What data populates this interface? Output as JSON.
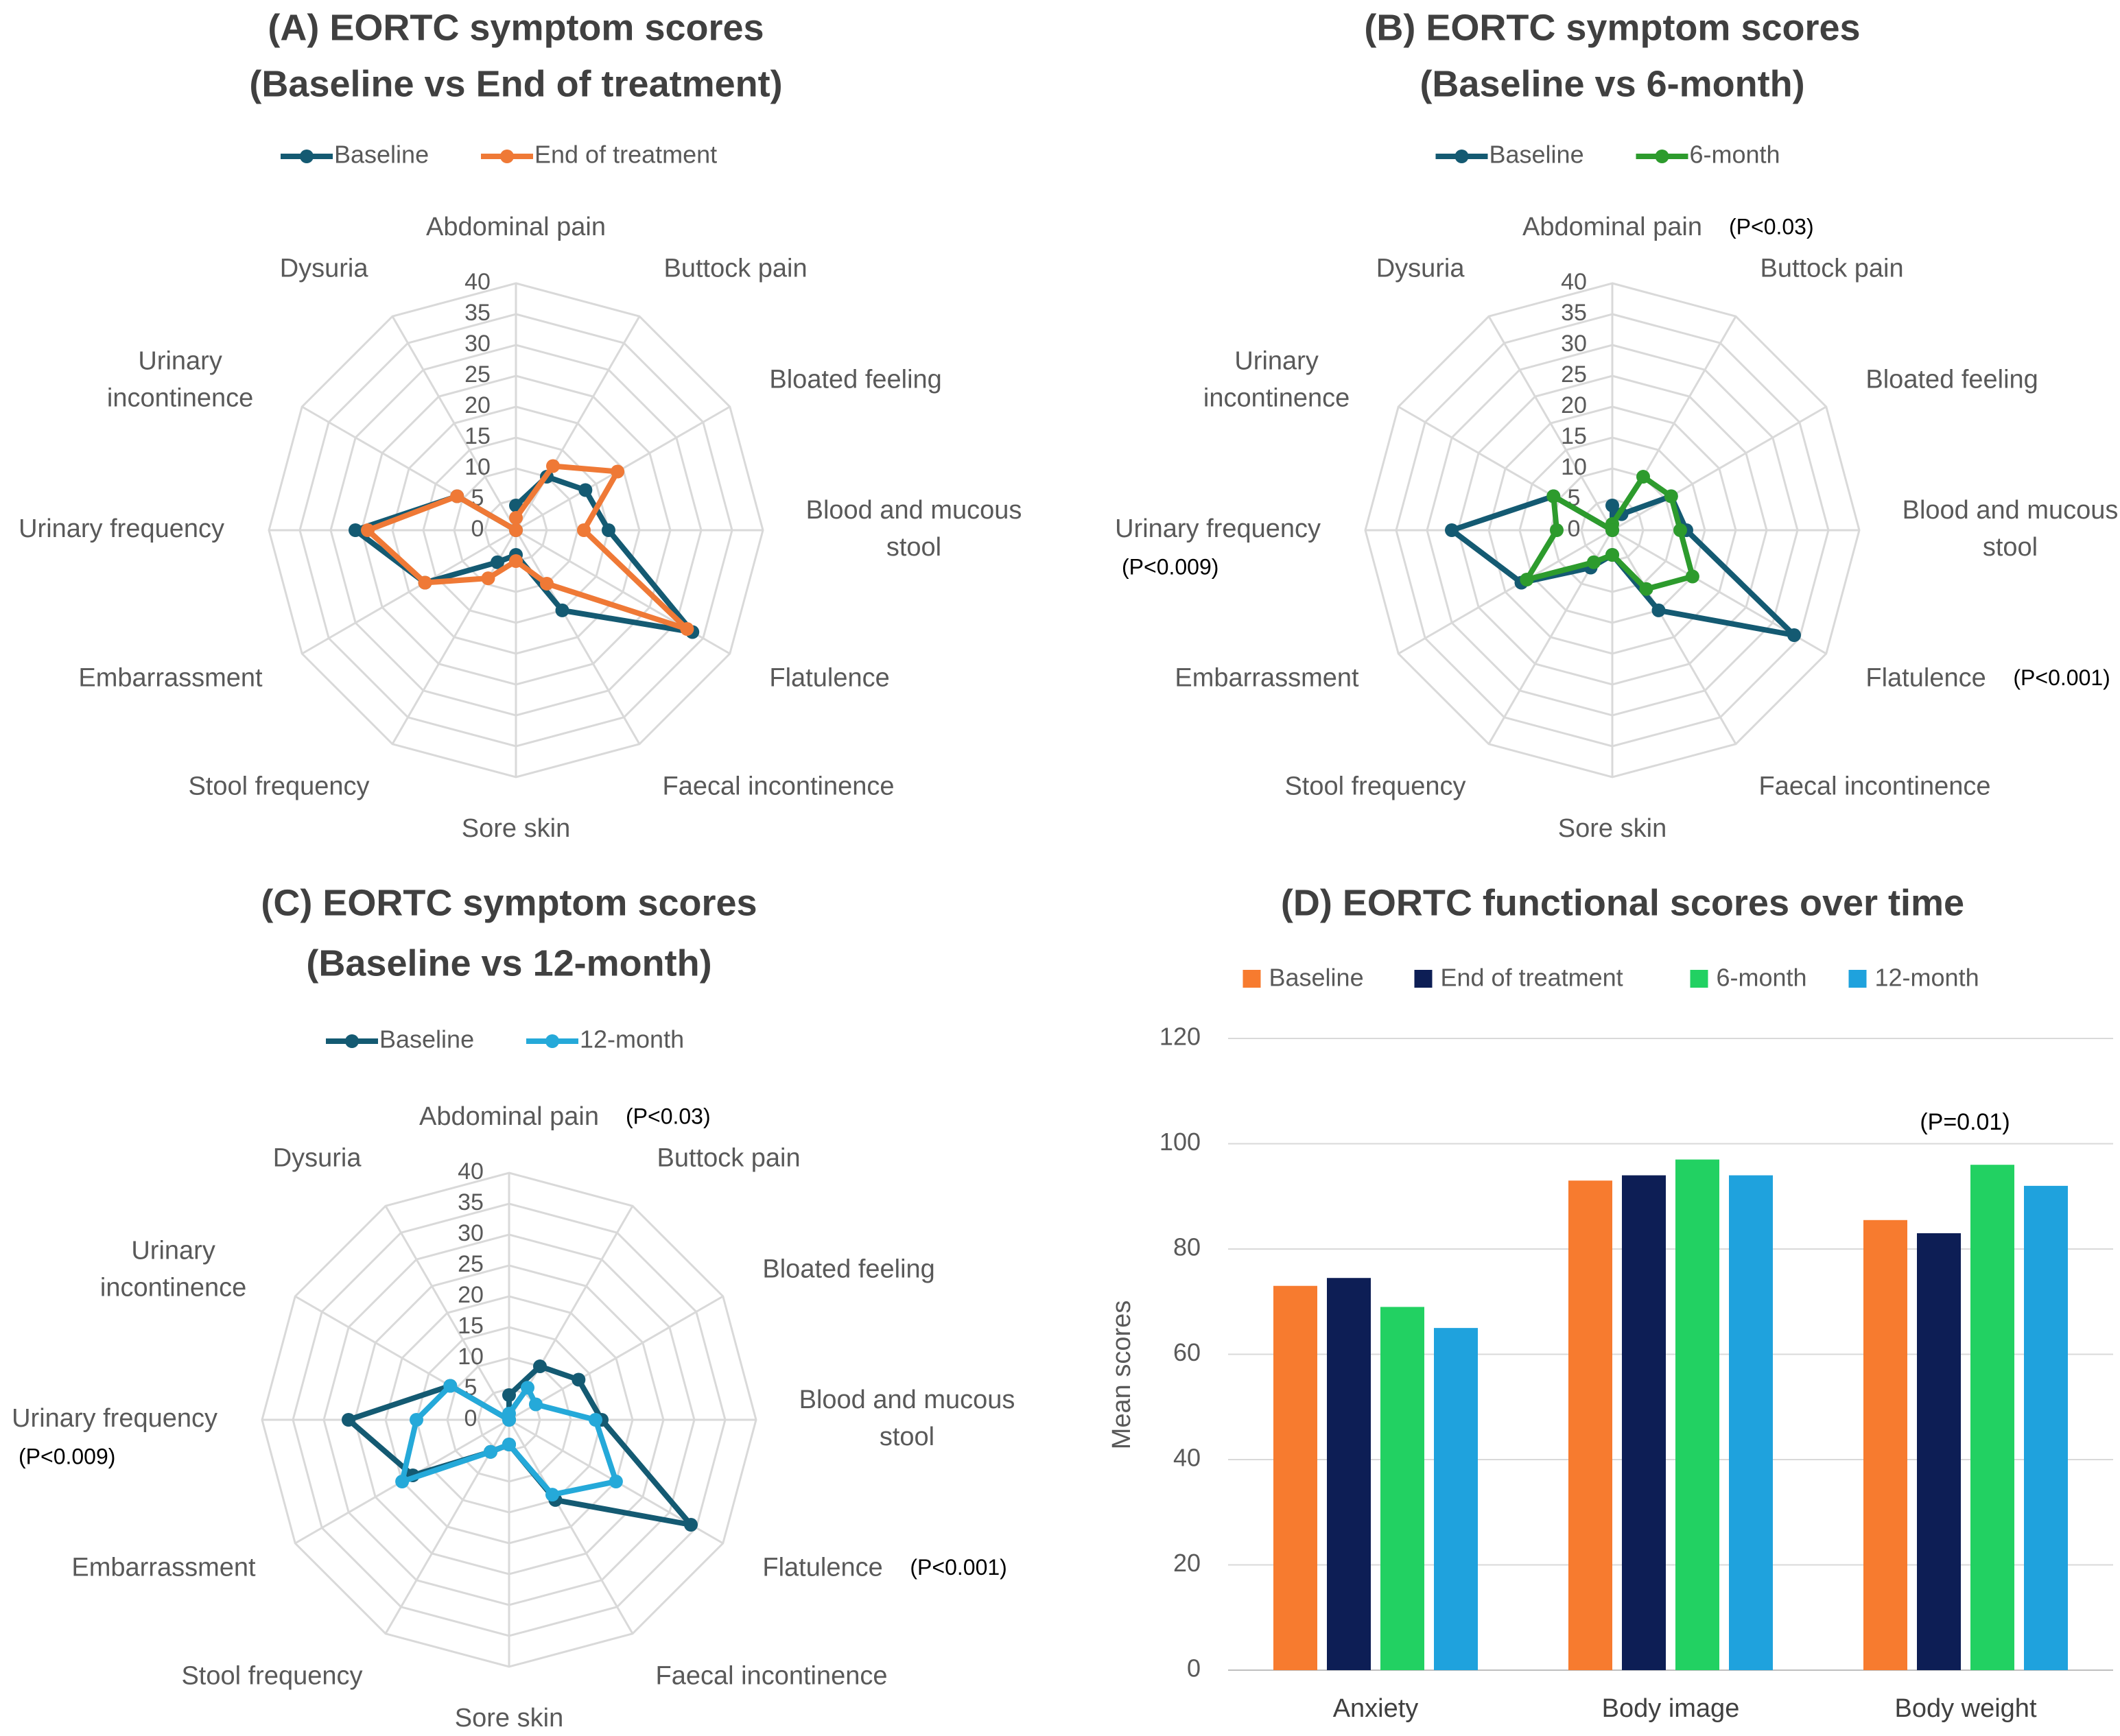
{
  "chart_data": [
    {
      "type": "radar",
      "title": "(A) EORTC symptom scores",
      "subtitle": "(Baseline vs End of treatment)",
      "rlim": [
        0,
        40
      ],
      "ticks": [
        "0",
        "5",
        "10",
        "15",
        "20",
        "25",
        "30",
        "35",
        "40"
      ],
      "tick_values": [
        0,
        5,
        10,
        15,
        20,
        25,
        30,
        35,
        40
      ],
      "legend_position": "top",
      "categories": [
        "Abdominal pain",
        "Buttock pain",
        "Bloated feeling",
        "Blood and mucous stool",
        "Flatulence",
        "Faecal incontinence",
        "Sore skin",
        "Stool frequency",
        "Embarrassment",
        "Urinary frequency",
        "Urinary incontinence",
        "Dysuria"
      ],
      "category_lines": [
        [
          "Abdominal pain"
        ],
        [
          "Buttock pain"
        ],
        [
          "Bloated feeling"
        ],
        [
          "Blood and mucous",
          "stool"
        ],
        [
          "Flatulence"
        ],
        [
          "Faecal incontinence"
        ],
        [
          "Sore skin"
        ],
        [
          "Stool frequency"
        ],
        [
          "Embarrassment"
        ],
        [
          "Urinary frequency"
        ],
        [
          "Urinary",
          "incontinence"
        ],
        [
          "Dysuria"
        ]
      ],
      "annotations": [
        "",
        "",
        "",
        "",
        "",
        "",
        "",
        "",
        "",
        "",
        "",
        ""
      ],
      "series": [
        {
          "name": "Baseline",
          "color": "#145a72",
          "values": [
            4,
            10,
            13,
            15,
            33,
            15,
            4,
            6,
            17,
            26,
            11,
            0
          ]
        },
        {
          "name": "End of treatment",
          "color": "#ef7936",
          "values": [
            2,
            12,
            19,
            11,
            32,
            10,
            5,
            9,
            17,
            24,
            11,
            0
          ]
        }
      ]
    },
    {
      "type": "radar",
      "title": "(B) EORTC symptom scores",
      "subtitle": "(Baseline vs 6-month)",
      "rlim": [
        0,
        40
      ],
      "ticks": [
        "0",
        "5",
        "10",
        "15",
        "20",
        "25",
        "30",
        "35",
        "40"
      ],
      "tick_values": [
        0,
        5,
        10,
        15,
        20,
        25,
        30,
        35,
        40
      ],
      "legend_position": "top",
      "categories": [
        "Abdominal pain",
        "Buttock pain",
        "Bloated feeling",
        "Blood and mucous stool",
        "Flatulence",
        "Faecal incontinence",
        "Sore skin",
        "Stool frequency",
        "Embarrassment",
        "Urinary frequency",
        "Urinary incontinence",
        "Dysuria"
      ],
      "category_lines": [
        [
          "Abdominal pain"
        ],
        [
          "Buttock pain"
        ],
        [
          "Bloated feeling"
        ],
        [
          "Blood and mucous",
          "stool"
        ],
        [
          "Flatulence"
        ],
        [
          "Faecal incontinence"
        ],
        [
          "Sore skin"
        ],
        [
          "Stool frequency"
        ],
        [
          "Embarrassment"
        ],
        [
          "Urinary frequency"
        ],
        [
          "Urinary",
          "incontinence"
        ],
        [
          "Dysuria"
        ]
      ],
      "annotations": [
        "(P<0.03)",
        "",
        "",
        "",
        "(P<0.001)",
        "",
        "",
        "",
        "",
        "(P<0.009)",
        "",
        ""
      ],
      "series": [
        {
          "name": "Baseline",
          "color": "#145a72",
          "values": [
            4,
            3,
            11,
            12,
            34,
            15,
            4,
            7,
            17,
            26,
            11,
            0
          ]
        },
        {
          "name": "6-month",
          "color": "#2d9b2d",
          "values": [
            1,
            10,
            11,
            11,
            15,
            11,
            4,
            6,
            16,
            9,
            11,
            0
          ]
        }
      ]
    },
    {
      "type": "radar",
      "title": "(C) EORTC symptom scores",
      "subtitle": "(Baseline vs 12-month)",
      "rlim": [
        0,
        40
      ],
      "ticks": [
        "0",
        "5",
        "10",
        "15",
        "20",
        "25",
        "30",
        "35",
        "40"
      ],
      "tick_values": [
        0,
        5,
        10,
        15,
        20,
        25,
        30,
        35,
        40
      ],
      "legend_position": "top",
      "categories": [
        "Abdominal pain",
        "Buttock pain",
        "Bloated feeling",
        "Blood and mucous stool",
        "Flatulence",
        "Faecal incontinence",
        "Sore skin",
        "Stool frequency",
        "Embarrassment",
        "Urinary frequency",
        "Urinary incontinence",
        "Dysuria"
      ],
      "category_lines": [
        [
          "Abdominal pain"
        ],
        [
          "Buttock pain"
        ],
        [
          "Bloated feeling"
        ],
        [
          "Blood and mucous",
          "stool"
        ],
        [
          "Flatulence"
        ],
        [
          "Faecal incontinence"
        ],
        [
          "Sore skin"
        ],
        [
          "Stool frequency"
        ],
        [
          "Embarrassment"
        ],
        [
          "Urinary frequency"
        ],
        [
          "Urinary",
          "incontinence"
        ],
        [
          "Dysuria"
        ]
      ],
      "annotations": [
        "(P<0.03)",
        "",
        "",
        "",
        "(P<0.001)",
        "",
        "",
        "",
        "",
        "(P<0.009)",
        "",
        ""
      ],
      "series": [
        {
          "name": "Baseline",
          "color": "#145a72",
          "values": [
            4,
            10,
            13,
            15,
            34,
            15,
            4,
            6,
            18,
            26,
            11,
            0
          ]
        },
        {
          "name": "12-month",
          "color": "#25a9d9",
          "values": [
            1,
            6,
            5,
            14,
            20,
            14,
            4,
            6,
            20,
            15,
            11,
            0
          ]
        }
      ]
    },
    {
      "type": "bar",
      "title": "(D) EORTC functional scores over time",
      "ylabel": "Mean scores",
      "ylim": [
        0,
        120
      ],
      "yticks": [
        "0",
        "20",
        "40",
        "60",
        "80",
        "100",
        "120"
      ],
      "ytick_values": [
        0,
        20,
        40,
        60,
        80,
        100,
        120
      ],
      "grid": true,
      "legend_position": "top",
      "categories": [
        "Anxiety",
        "Body image",
        "Body weight"
      ],
      "series": [
        {
          "name": "Baseline",
          "color": "#f77b2f",
          "values": [
            73,
            93,
            85.5
          ]
        },
        {
          "name": "End of treatment",
          "color": "#0d1e55",
          "values": [
            74.5,
            94,
            83
          ]
        },
        {
          "name": "6-month",
          "color": "#22d162",
          "values": [
            69,
            97,
            96
          ]
        },
        {
          "name": "12-month",
          "color": "#1fa2dd",
          "values": [
            65,
            94,
            92
          ]
        }
      ],
      "annotations": [
        {
          "text": "(P=0.01)",
          "category": "Body weight",
          "series": "6-month"
        }
      ]
    }
  ]
}
